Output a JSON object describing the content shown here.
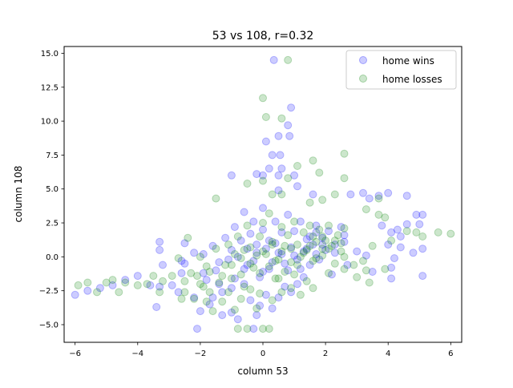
{
  "chart_data": {
    "type": "scatter",
    "title": "53 vs 108, r=0.32",
    "xlabel": "column 53",
    "ylabel": "column 108",
    "xlim": [
      -6.35,
      6.35
    ],
    "ylim": [
      -6.3,
      15.5
    ],
    "x_ticks": [
      -6,
      -4,
      -2,
      0,
      2,
      4,
      6
    ],
    "x_tick_labels": [
      "−6",
      "−4",
      "−2",
      "0",
      "2",
      "4",
      "6"
    ],
    "y_ticks": [
      -5.0,
      -2.5,
      0.0,
      2.5,
      5.0,
      7.5,
      10.0,
      12.5,
      15.0
    ],
    "y_tick_labels": [
      "−5.0",
      "−2.5",
      "0.0",
      "2.5",
      "5.0",
      "7.5",
      "10.0",
      "12.5",
      "15.0"
    ],
    "grid": false,
    "legend_position": "upper right",
    "marker": "open circle, semi-transparent",
    "series": [
      {
        "name": "home wins",
        "color": "#0000ff",
        "points": [
          [
            0.35,
            14.5
          ],
          [
            0.9,
            11.0
          ],
          [
            0.8,
            9.7
          ],
          [
            0.5,
            8.9
          ],
          [
            0.85,
            8.9
          ],
          [
            0.1,
            8.5
          ],
          [
            0.3,
            7.5
          ],
          [
            0.55,
            7.5
          ],
          [
            0.6,
            6.5
          ],
          [
            0.2,
            6.5
          ],
          [
            -0.2,
            6.1
          ],
          [
            0.5,
            6.0
          ],
          [
            1.0,
            6.0
          ],
          [
            -1.0,
            6.0
          ],
          [
            0.0,
            6.0
          ],
          [
            1.1,
            5.2
          ],
          [
            0.5,
            4.9
          ],
          [
            1.6,
            4.6
          ],
          [
            2.8,
            4.6
          ],
          [
            3.2,
            4.7
          ],
          [
            3.4,
            4.3
          ],
          [
            3.7,
            4.5
          ],
          [
            4.0,
            4.7
          ],
          [
            4.6,
            4.5
          ],
          [
            4.9,
            3.1
          ],
          [
            5.0,
            2.4
          ],
          [
            5.1,
            3.1
          ],
          [
            4.6,
            2.4
          ],
          [
            4.3,
            2.0
          ],
          [
            3.8,
            2.3
          ],
          [
            4.1,
            1.8
          ],
          [
            4.4,
            1.5
          ],
          [
            4.0,
            0.9
          ],
          [
            4.4,
            0.7
          ],
          [
            4.2,
            -0.1
          ],
          [
            4.1,
            -0.8
          ],
          [
            4.8,
            0.3
          ],
          [
            5.1,
            0.6
          ],
          [
            5.1,
            -1.4
          ],
          [
            4.1,
            -1.6
          ],
          [
            3.5,
            -1.1
          ],
          [
            3.3,
            0.1
          ],
          [
            3.0,
            0.4
          ],
          [
            2.6,
            1.1
          ],
          [
            2.7,
            -0.6
          ],
          [
            2.3,
            0.3
          ],
          [
            2.2,
            -1.3
          ],
          [
            1.9,
            0.9
          ],
          [
            1.5,
            1.5
          ],
          [
            1.7,
            2.3
          ],
          [
            -6.0,
            -2.8
          ],
          [
            -5.6,
            -2.5
          ],
          [
            -5.2,
            -2.3
          ],
          [
            -4.8,
            -2.1
          ],
          [
            -4.4,
            -1.7
          ],
          [
            -4.0,
            -1.4
          ],
          [
            -3.6,
            -2.1
          ],
          [
            -3.4,
            -3.7
          ],
          [
            -3.3,
            -2.2
          ],
          [
            -3.2,
            -0.6
          ],
          [
            -3.3,
            0.5
          ],
          [
            -3.3,
            1.1
          ],
          [
            -2.9,
            -2.1
          ],
          [
            -2.7,
            -2.6
          ],
          [
            -2.6,
            -1.2
          ],
          [
            -2.6,
            -0.3
          ],
          [
            -2.5,
            1.0
          ],
          [
            -2.2,
            -3.0
          ],
          [
            -2.1,
            -5.3
          ],
          [
            -2.0,
            -4.0
          ],
          [
            -1.9,
            0.2
          ],
          [
            -1.7,
            -3.5
          ],
          [
            -1.6,
            -3.0
          ],
          [
            -1.4,
            -2.0
          ],
          [
            -1.3,
            -4.3
          ],
          [
            -1.0,
            -4.1
          ],
          [
            -1.0,
            -2.3
          ],
          [
            -0.8,
            -4.6
          ],
          [
            -0.6,
            -2.0
          ],
          [
            -0.4,
            -3.2
          ],
          [
            -0.3,
            -5.3
          ],
          [
            -0.2,
            -4.3
          ],
          [
            -0.1,
            -3.6
          ],
          [
            0.1,
            -2.8
          ],
          [
            0.3,
            -3.8
          ],
          [
            0.5,
            -3.0
          ],
          [
            0.7,
            -2.2
          ],
          [
            0.9,
            -2.6
          ],
          [
            1.1,
            -2.0
          ],
          [
            1.3,
            -1.5
          ],
          [
            -2.5,
            -0.5
          ],
          [
            -2.2,
            0.3
          ],
          [
            -1.9,
            -1.2
          ],
          [
            -1.6,
            0.8
          ],
          [
            -1.4,
            -0.4
          ],
          [
            -1.2,
            1.4
          ],
          [
            -1.0,
            0.5
          ],
          [
            -0.9,
            2.2
          ],
          [
            -0.7,
            1.2
          ],
          [
            -0.6,
            3.3
          ],
          [
            -0.5,
            -0.6
          ],
          [
            -0.4,
            1.7
          ],
          [
            -0.3,
            2.6
          ],
          [
            -0.2,
            0.9
          ],
          [
            -0.1,
            -1.5
          ],
          [
            0.0,
            2.0
          ],
          [
            0.0,
            3.6
          ],
          [
            0.2,
            1.2
          ],
          [
            0.2,
            -0.9
          ],
          [
            0.4,
            2.6
          ],
          [
            0.5,
            0.3
          ],
          [
            0.6,
            1.8
          ],
          [
            0.7,
            -0.5
          ],
          [
            0.8,
            3.1
          ],
          [
            0.9,
            0.7
          ],
          [
            1.0,
            1.9
          ],
          [
            1.1,
            -0.2
          ],
          [
            1.2,
            2.6
          ],
          [
            1.3,
            0.4
          ],
          [
            1.4,
            1.3
          ],
          [
            1.5,
            -0.6
          ],
          [
            1.6,
            0.9
          ],
          [
            1.7,
            1.8
          ],
          [
            1.8,
            -0.2
          ],
          [
            1.9,
            1.4
          ],
          [
            2.0,
            0.5
          ],
          [
            2.1,
            1.9
          ],
          [
            2.3,
            0.9
          ],
          [
            2.5,
            2.2
          ],
          [
            2.6,
            1.6
          ],
          [
            -1.8,
            -1.7
          ],
          [
            -1.5,
            -1.0
          ],
          [
            -1.3,
            -2.6
          ],
          [
            -1.1,
            -0.2
          ],
          [
            -0.9,
            -1.6
          ],
          [
            -0.8,
            0.0
          ],
          [
            -0.6,
            -0.9
          ],
          [
            -0.5,
            0.6
          ],
          [
            -0.3,
            -0.3
          ],
          [
            -0.2,
            0.3
          ],
          [
            0.0,
            -1.1
          ],
          [
            0.1,
            0.6
          ],
          [
            0.3,
            -0.4
          ],
          [
            0.4,
            1.0
          ],
          [
            0.6,
            0.2
          ],
          [
            0.8,
            -1.0
          ],
          [
            1.0,
            0.1
          ],
          [
            1.2,
            -0.9
          ],
          [
            1.4,
            0.6
          ],
          [
            1.7,
            0.2
          ]
        ]
      },
      {
        "name": "home losses",
        "color": "#008000",
        "points": [
          [
            0.8,
            14.5
          ],
          [
            0.0,
            11.7
          ],
          [
            0.1,
            10.3
          ],
          [
            0.6,
            10.2
          ],
          [
            1.6,
            7.1
          ],
          [
            2.6,
            7.6
          ],
          [
            1.1,
            6.7
          ],
          [
            0.8,
            5.8
          ],
          [
            1.8,
            6.2
          ],
          [
            2.6,
            5.8
          ],
          [
            0.0,
            5.6
          ],
          [
            -0.5,
            5.4
          ],
          [
            0.3,
            4.6
          ],
          [
            0.6,
            4.6
          ],
          [
            1.5,
            4.0
          ],
          [
            1.9,
            4.2
          ],
          [
            2.3,
            4.6
          ],
          [
            3.7,
            4.3
          ],
          [
            -1.5,
            4.3
          ],
          [
            3.3,
            3.5
          ],
          [
            3.7,
            3.1
          ],
          [
            3.9,
            2.9
          ],
          [
            4.6,
            1.9
          ],
          [
            4.9,
            1.8
          ],
          [
            5.1,
            1.5
          ],
          [
            5.6,
            1.8
          ],
          [
            6.0,
            1.7
          ],
          [
            4.1,
            1.2
          ],
          [
            3.5,
            0.8
          ],
          [
            3.2,
            -0.3
          ],
          [
            2.9,
            -0.6
          ],
          [
            3.3,
            -1.0
          ],
          [
            3.9,
            -0.9
          ],
          [
            3.4,
            -1.9
          ],
          [
            3.0,
            -1.5
          ],
          [
            2.6,
            0.0
          ],
          [
            2.3,
            -0.5
          ],
          [
            2.1,
            -1.2
          ],
          [
            1.9,
            0.6
          ],
          [
            1.6,
            1.5
          ],
          [
            -5.9,
            -2.1
          ],
          [
            -5.6,
            -1.9
          ],
          [
            -5.3,
            -2.6
          ],
          [
            -5.0,
            -1.9
          ],
          [
            -4.8,
            -1.7
          ],
          [
            -4.6,
            -2.6
          ],
          [
            -4.4,
            -1.9
          ],
          [
            -4.0,
            -2.1
          ],
          [
            -3.7,
            -2.0
          ],
          [
            -3.5,
            -1.4
          ],
          [
            -3.3,
            -2.6
          ],
          [
            -3.2,
            -1.8
          ],
          [
            -2.9,
            -1.4
          ],
          [
            -2.7,
            -0.1
          ],
          [
            -2.5,
            -2.6
          ],
          [
            -2.4,
            1.4
          ],
          [
            -2.2,
            -3.1
          ],
          [
            -2.0,
            -2.0
          ],
          [
            -1.8,
            -3.3
          ],
          [
            -1.6,
            -4.0
          ],
          [
            -1.3,
            -3.3
          ],
          [
            -1.1,
            -2.6
          ],
          [
            -0.9,
            -3.9
          ],
          [
            -0.7,
            -3.1
          ],
          [
            -0.5,
            -5.3
          ],
          [
            -0.4,
            -2.4
          ],
          [
            -0.2,
            -3.8
          ],
          [
            0.0,
            -5.3
          ],
          [
            0.2,
            -5.3
          ],
          [
            0.3,
            -3.2
          ],
          [
            -0.8,
            -5.3
          ],
          [
            -2.6,
            -3.1
          ],
          [
            0.6,
            -2.6
          ],
          [
            0.9,
            -2.3
          ],
          [
            1.2,
            -2.8
          ],
          [
            1.4,
            -1.8
          ],
          [
            1.6,
            -2.3
          ],
          [
            0.5,
            -1.6
          ],
          [
            -0.1,
            -2.7
          ],
          [
            -1.7,
            -2.6
          ],
          [
            -2.3,
            -1.2
          ],
          [
            -2.0,
            0.0
          ],
          [
            -1.8,
            -0.7
          ],
          [
            -1.5,
            0.6
          ],
          [
            -1.3,
            -1.4
          ],
          [
            -1.1,
            0.9
          ],
          [
            -1.0,
            -0.6
          ],
          [
            -0.8,
            1.5
          ],
          [
            -0.7,
            -0.1
          ],
          [
            -0.5,
            2.3
          ],
          [
            -0.4,
            0.7
          ],
          [
            -0.3,
            -0.8
          ],
          [
            -0.1,
            1.5
          ],
          [
            0.0,
            2.5
          ],
          [
            0.1,
            0.2
          ],
          [
            0.2,
            3.2
          ],
          [
            0.3,
            1.1
          ],
          [
            0.5,
            -0.2
          ],
          [
            0.6,
            2.2
          ],
          [
            0.7,
            0.8
          ],
          [
            0.8,
            1.6
          ],
          [
            0.9,
            -0.4
          ],
          [
            1.0,
            2.6
          ],
          [
            1.1,
            0.9
          ],
          [
            1.2,
            0.0
          ],
          [
            1.3,
            1.8
          ],
          [
            1.4,
            0.5
          ],
          [
            1.5,
            2.3
          ],
          [
            1.6,
            -0.3
          ],
          [
            1.7,
            1.1
          ],
          [
            1.8,
            2.0
          ],
          [
            1.9,
            0.1
          ],
          [
            2.0,
            1.2
          ],
          [
            2.1,
            2.3
          ],
          [
            2.2,
            0.8
          ],
          [
            2.4,
            1.6
          ],
          [
            2.5,
            0.4
          ],
          [
            2.6,
            2.1
          ],
          [
            -2.5,
            -1.8
          ],
          [
            -2.1,
            -1.4
          ],
          [
            -1.9,
            -2.2
          ],
          [
            -1.7,
            -1.1
          ],
          [
            -1.4,
            -1.9
          ],
          [
            -1.2,
            -0.6
          ],
          [
            -1.0,
            -1.6
          ],
          [
            -0.9,
            0.2
          ],
          [
            -0.7,
            -1.3
          ],
          [
            -0.6,
            0.5
          ],
          [
            -0.4,
            -0.5
          ],
          [
            -0.2,
            0.1
          ],
          [
            -0.1,
            -1.2
          ],
          [
            0.0,
            0.4
          ],
          [
            0.2,
            -0.7
          ],
          [
            0.3,
            0.9
          ],
          [
            0.4,
            -0.3
          ],
          [
            0.6,
            0.4
          ],
          [
            0.7,
            -1.1
          ],
          [
            0.9,
            0.6
          ],
          [
            1.1,
            -0.6
          ],
          [
            1.3,
            0.3
          ],
          [
            1.5,
            0.8
          ],
          [
            1.7,
            -0.1
          ],
          [
            1.9,
            1.5
          ],
          [
            2.1,
            0.6
          ],
          [
            2.3,
            1.2
          ],
          [
            2.5,
            1.0
          ],
          [
            2.6,
            -0.9
          ],
          [
            -0.6,
            -2.2
          ],
          [
            0.4,
            -1.6
          ],
          [
            1.0,
            -1.3
          ]
        ]
      }
    ]
  }
}
